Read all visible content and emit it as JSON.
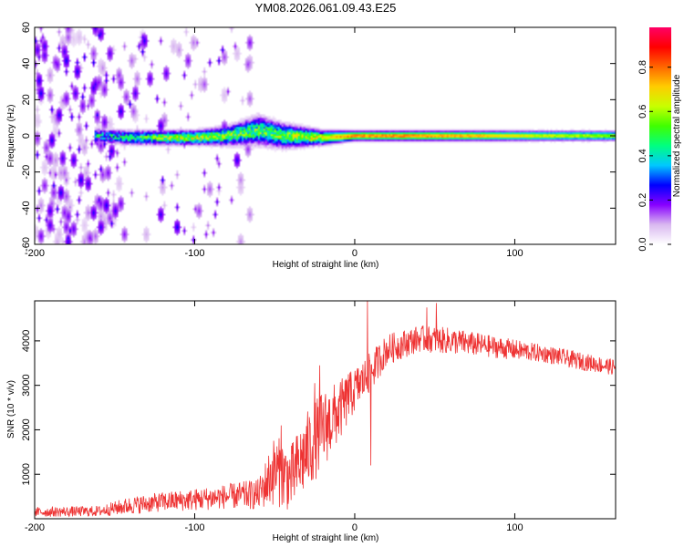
{
  "title": "YM08.2026.061.09.43.E25",
  "chart_data": [
    {
      "type": "heatmap",
      "name": "spectrogram",
      "xlabel": "Height of straight line (km)",
      "ylabel": "Frequency (Hz)",
      "xlim": [
        -200,
        163
      ],
      "ylim": [
        -60,
        60
      ],
      "xticks": [
        -200,
        -100,
        0,
        100
      ],
      "yticks": [
        -60,
        -40,
        -20,
        0,
        20,
        40,
        60
      ],
      "colorbar": {
        "label": "Normalized spectral amplitude",
        "range": [
          0,
          0.98
        ],
        "ticks": [
          0.0,
          0.2,
          0.4,
          0.6,
          0.8
        ],
        "colormap": [
          "#ffffff",
          "#d9b8f0",
          "#8800ff",
          "#0000ff",
          "#00c8ff",
          "#00ff80",
          "#40ff00",
          "#c8ff00",
          "#ffcc00",
          "#ff6600",
          "#ff0000",
          "#ff0066"
        ]
      },
      "ridge": [
        {
          "x": -160,
          "freq": 0,
          "amp": 0.35,
          "width": 3
        },
        {
          "x": -140,
          "freq": -1,
          "amp": 0.45,
          "width": 3
        },
        {
          "x": -120,
          "freq": -1,
          "amp": 0.55,
          "width": 3
        },
        {
          "x": -100,
          "freq": -1,
          "amp": 0.6,
          "width": 3
        },
        {
          "x": -80,
          "freq": 0,
          "amp": 0.55,
          "width": 4
        },
        {
          "x": -60,
          "freq": 3,
          "amp": 0.5,
          "width": 6
        },
        {
          "x": -45,
          "freq": 0,
          "amp": 0.55,
          "width": 5
        },
        {
          "x": -20,
          "freq": -1,
          "amp": 0.65,
          "width": 3
        },
        {
          "x": 0,
          "freq": 0,
          "amp": 0.8,
          "width": 2
        },
        {
          "x": 40,
          "freq": 0,
          "amp": 0.8,
          "width": 2
        },
        {
          "x": 80,
          "freq": 0,
          "amp": 0.75,
          "width": 2
        },
        {
          "x": 120,
          "freq": 0,
          "amp": 0.65,
          "width": 2
        },
        {
          "x": 163,
          "freq": 0,
          "amp": 0.6,
          "width": 2
        }
      ],
      "noise_region": {
        "x_from": -200,
        "x_to": -70,
        "amp_max": 0.22
      }
    },
    {
      "type": "line",
      "name": "snr",
      "xlabel": "Height of straight line (km)",
      "ylabel": "SNR (10 * v/v)",
      "xlim": [
        -200,
        163
      ],
      "ylim": [
        0,
        4900
      ],
      "xticks": [
        -200,
        -100,
        0,
        100
      ],
      "yticks": [
        1000,
        2000,
        3000,
        4000
      ],
      "color": "#ee3333",
      "envelope": [
        {
          "x": -200,
          "mean": 150,
          "spread": 110
        },
        {
          "x": -160,
          "mean": 170,
          "spread": 120
        },
        {
          "x": -140,
          "mean": 300,
          "spread": 200
        },
        {
          "x": -120,
          "mean": 380,
          "spread": 220
        },
        {
          "x": -100,
          "mean": 430,
          "spread": 250
        },
        {
          "x": -80,
          "mean": 500,
          "spread": 280
        },
        {
          "x": -60,
          "mean": 550,
          "spread": 350
        },
        {
          "x": -50,
          "mean": 1100,
          "spread": 800
        },
        {
          "x": -40,
          "mean": 900,
          "spread": 750
        },
        {
          "x": -30,
          "mean": 1500,
          "spread": 900
        },
        {
          "x": -20,
          "mean": 2000,
          "spread": 900
        },
        {
          "x": -10,
          "mean": 2400,
          "spread": 700
        },
        {
          "x": 0,
          "mean": 2900,
          "spread": 500
        },
        {
          "x": 10,
          "mean": 3300,
          "spread": 450
        },
        {
          "x": 20,
          "mean": 3800,
          "spread": 350
        },
        {
          "x": 40,
          "mean": 4050,
          "spread": 300
        },
        {
          "x": 60,
          "mean": 4000,
          "spread": 300
        },
        {
          "x": 80,
          "mean": 3900,
          "spread": 260
        },
        {
          "x": 100,
          "mean": 3800,
          "spread": 230
        },
        {
          "x": 120,
          "mean": 3700,
          "spread": 200
        },
        {
          "x": 140,
          "mean": 3550,
          "spread": 200
        },
        {
          "x": 163,
          "mean": 3400,
          "spread": 180
        }
      ],
      "spikes": [
        {
          "x": -46,
          "y": 2100
        },
        {
          "x": -25,
          "y": 3050
        },
        {
          "x": -22,
          "y": 3450
        },
        {
          "x": -4,
          "y": 3250
        },
        {
          "x": 8,
          "y": 4950
        },
        {
          "x": 10,
          "y": 1200
        },
        {
          "x": 45,
          "y": 4750
        },
        {
          "x": 51,
          "y": 4850
        }
      ]
    }
  ]
}
